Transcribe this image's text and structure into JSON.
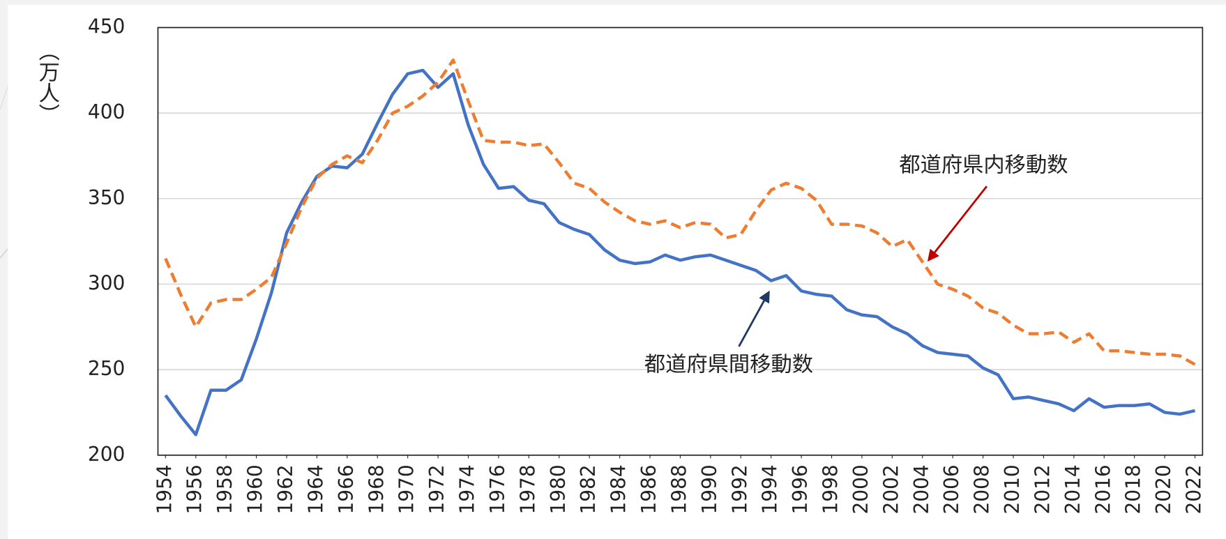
{
  "chart_data": {
    "type": "line",
    "y_label": "（万人）",
    "x": [
      1954,
      1955,
      1956,
      1957,
      1958,
      1959,
      1960,
      1961,
      1962,
      1963,
      1964,
      1965,
      1966,
      1967,
      1968,
      1969,
      1970,
      1971,
      1972,
      1973,
      1974,
      1975,
      1976,
      1977,
      1978,
      1979,
      1980,
      1981,
      1982,
      1983,
      1984,
      1985,
      1986,
      1987,
      1988,
      1989,
      1990,
      1991,
      1992,
      1993,
      1994,
      1995,
      1996,
      1997,
      1998,
      1999,
      2000,
      2001,
      2002,
      2003,
      2004,
      2005,
      2006,
      2007,
      2008,
      2009,
      2010,
      2011,
      2012,
      2013,
      2014,
      2015,
      2016,
      2017,
      2018,
      2019,
      2020,
      2021,
      2022
    ],
    "xlim": [
      1953.5,
      2022.5
    ],
    "xticks": [
      1954,
      1956,
      1958,
      1960,
      1962,
      1964,
      1966,
      1968,
      1970,
      1972,
      1974,
      1976,
      1978,
      1980,
      1982,
      1984,
      1986,
      1988,
      1990,
      1992,
      1994,
      1996,
      1998,
      2000,
      2002,
      2004,
      2006,
      2008,
      2010,
      2012,
      2014,
      2016,
      2018,
      2020,
      2022
    ],
    "ylim": [
      200,
      450
    ],
    "yticks": [
      200,
      250,
      300,
      350,
      400,
      450
    ],
    "grid": true,
    "series": [
      {
        "name": "都道府県間移動数",
        "color": "#4472c4",
        "dashed": false,
        "values": [
          235,
          223,
          212,
          238,
          238,
          244,
          268,
          295,
          330,
          348,
          363,
          369,
          368,
          376,
          394,
          411,
          423,
          425,
          415,
          423,
          393,
          370,
          356,
          357,
          349,
          347,
          336,
          332,
          329,
          320,
          314,
          312,
          313,
          317,
          314,
          316,
          317,
          314,
          311,
          308,
          302,
          305,
          296,
          294,
          293,
          285,
          282,
          281,
          275,
          271,
          264,
          260,
          259,
          258,
          251,
          247,
          233,
          234,
          232,
          230,
          226,
          233,
          228,
          229,
          229,
          230,
          225,
          224,
          226
        ]
      },
      {
        "name": "都道府県内移動数",
        "color": "#ed7d31",
        "dashed": true,
        "values": [
          315,
          294,
          275,
          289,
          291,
          291,
          297,
          304,
          324,
          345,
          362,
          370,
          375,
          371,
          384,
          400,
          404,
          410,
          418,
          431,
          407,
          384,
          383,
          383,
          381,
          382,
          371,
          359,
          356,
          348,
          342,
          337,
          335,
          337,
          333,
          336,
          335,
          327,
          329,
          343,
          355,
          359,
          356,
          349,
          335,
          335,
          334,
          330,
          322,
          326,
          313,
          300,
          297,
          293,
          286,
          283,
          276,
          271,
          271,
          272,
          266,
          271,
          261,
          261,
          260,
          259,
          259,
          258,
          253
        ]
      }
    ]
  }
}
